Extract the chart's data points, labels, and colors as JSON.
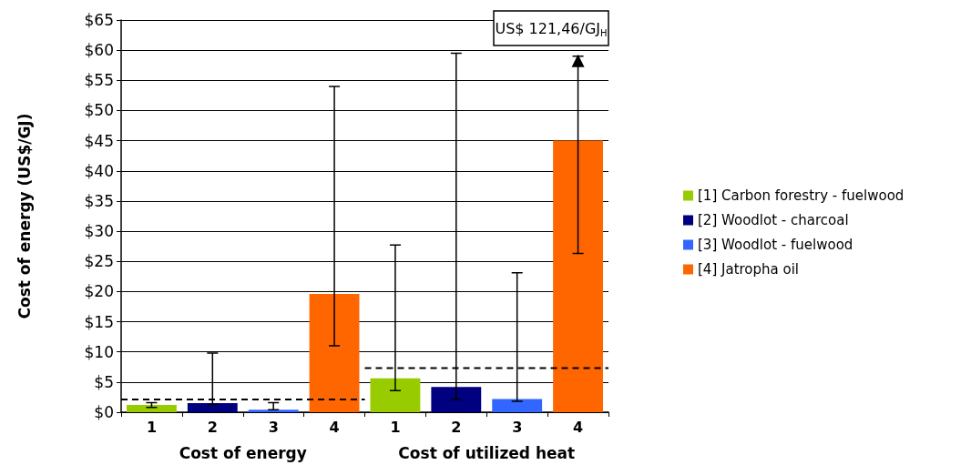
{
  "chart_data": {
    "type": "bar",
    "ylabel": "Cost of energy (US$/GJ)",
    "categories": [
      "1",
      "2",
      "3",
      "4",
      "1",
      "2",
      "3",
      "4"
    ],
    "series": [
      {
        "name": "[1] Carbon forestry - fuelwood",
        "color": "#99cc00",
        "values": [
          1.2,
          null,
          null,
          null,
          5.6,
          null,
          null,
          null
        ],
        "errors": [
          [
            0.8,
            1.6
          ],
          null,
          null,
          null,
          [
            3.6,
            27.7
          ],
          null,
          null,
          null
        ]
      },
      {
        "name": "[2] Woodlot - charcoal",
        "color": "#000080",
        "values": [
          null,
          1.5,
          null,
          null,
          null,
          4.2,
          null,
          null
        ],
        "errors": [
          null,
          [
            1.3,
            9.8
          ],
          null,
          null,
          null,
          [
            2.1,
            59.5
          ],
          null,
          null
        ]
      },
      {
        "name": "[3] Woodlot - fuelwood",
        "color": "#3366ff",
        "values": [
          null,
          null,
          0.4,
          null,
          null,
          null,
          2.2,
          null
        ],
        "errors": [
          null,
          null,
          [
            0.4,
            1.6
          ],
          null,
          null,
          null,
          [
            1.8,
            23.1
          ],
          null
        ]
      },
      {
        "name": "[4] Jatropha oil",
        "color": "#ff6600",
        "values": [
          null,
          null,
          null,
          19.6,
          null,
          null,
          null,
          45.0
        ],
        "errors": [
          null,
          null,
          null,
          [
            11.0,
            54.0
          ],
          null,
          null,
          null,
          [
            26.3,
            59.0
          ]
        ]
      }
    ],
    "ylim": [
      0,
      65
    ],
    "yticks": [
      {
        "value": 0,
        "label": "$0"
      },
      {
        "value": 5,
        "label": "$5"
      },
      {
        "value": 10,
        "label": "$10"
      },
      {
        "value": 15,
        "label": "$15"
      },
      {
        "value": 20,
        "label": "$20"
      },
      {
        "value": 25,
        "label": "$25"
      },
      {
        "value": 30,
        "label": "$30"
      },
      {
        "value": 35,
        "label": "$35"
      },
      {
        "value": 40,
        "label": "$40"
      },
      {
        "value": 45,
        "label": "$45"
      },
      {
        "value": 50,
        "label": "$50"
      },
      {
        "value": 55,
        "label": "$55"
      },
      {
        "value": 60,
        "label": "$60"
      },
      {
        "value": 65,
        "label": "$65"
      }
    ],
    "grid": "y",
    "legend": "right",
    "ref_lines": [
      {
        "axis": "y",
        "value": 2.1,
        "color": "#000000",
        "line_style": "dashed"
      },
      {
        "axis": "y",
        "value": 7.3,
        "color": "#000000",
        "line_style": "dashed"
      }
    ],
    "annotations": [
      "US$ 121,46/GJ$_{H}$",
      "Cost of energy",
      "Cost of utilized heat"
    ]
  }
}
